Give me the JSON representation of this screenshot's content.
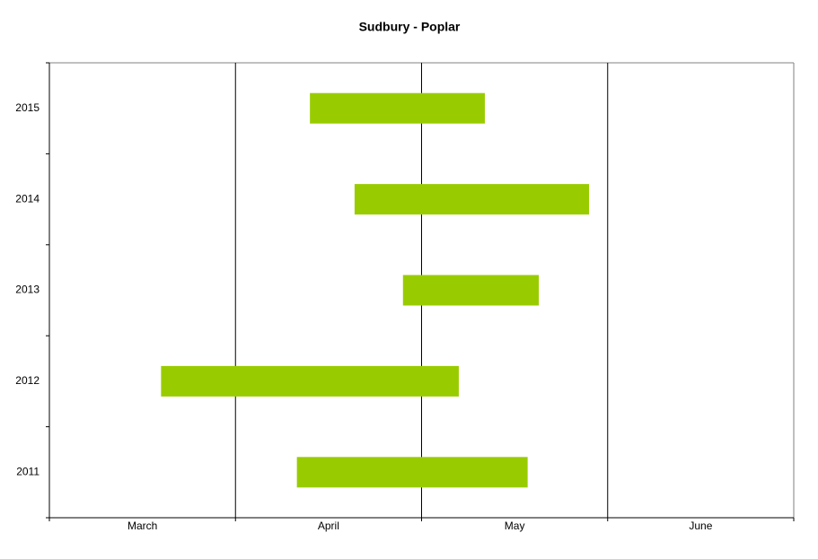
{
  "chart_data": {
    "type": "floating-bar",
    "title": "Sudbury - Poplar",
    "categories": [
      "2011",
      "2012",
      "2013",
      "2014",
      "2015"
    ],
    "start": [
      1.33,
      0.6,
      1.9,
      1.64,
      1.4
    ],
    "end": [
      2.57,
      2.2,
      2.63,
      2.9,
      2.34
    ],
    "color": "#99cc00",
    "x_categories": [
      "March",
      "April",
      "May",
      "June"
    ],
    "xlim": [
      0,
      4
    ],
    "xticks": [
      0,
      1,
      2,
      3,
      4
    ],
    "grid": true
  }
}
